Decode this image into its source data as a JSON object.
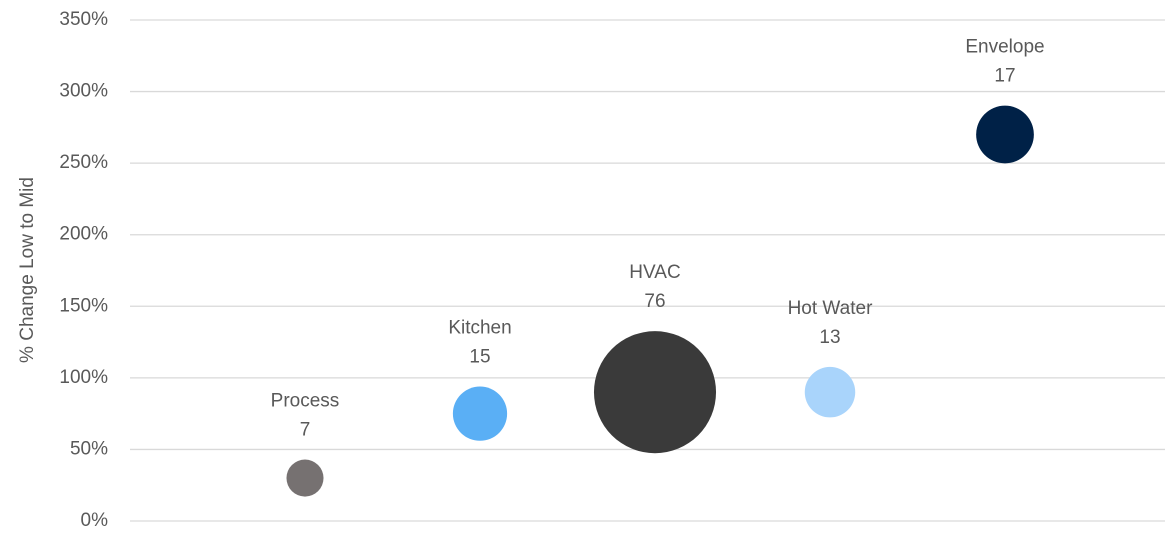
{
  "chart_data": {
    "type": "bubble",
    "y_label": "% Change Low to Mid",
    "categories": [
      "Process",
      "Kitchen",
      "HVAC",
      "Hot Water",
      "Envelope"
    ],
    "values": [
      30,
      75,
      90,
      90,
      270
    ],
    "sizes": [
      7,
      15,
      76,
      13,
      17
    ],
    "colors": [
      "#767171",
      "#5aaff5",
      "#3a3a3a",
      "#a9d4fb",
      "#002147"
    ],
    "ylim": [
      0,
      350
    ],
    "yticks": [
      {
        "value": 0,
        "label": "0%"
      },
      {
        "value": 50,
        "label": "50%"
      },
      {
        "value": 100,
        "label": "100%"
      },
      {
        "value": 150,
        "label": "150%"
      },
      {
        "value": 200,
        "label": "200%"
      },
      {
        "value": 250,
        "label": "250%"
      },
      {
        "value": 300,
        "label": "300%"
      },
      {
        "value": 350,
        "label": "350%"
      }
    ],
    "grid": true
  }
}
